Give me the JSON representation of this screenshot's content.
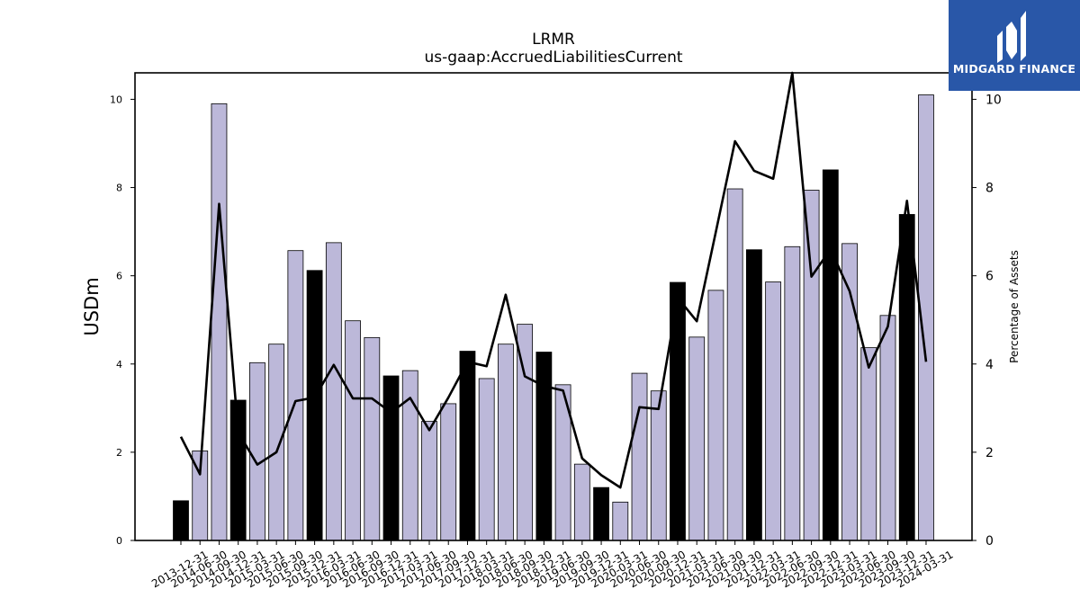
{
  "brand": {
    "name": "MIDGARD FINANCE",
    "bg_color": "#2957a8",
    "icon": "midgard-logo-icon"
  },
  "colors": {
    "bar_default": "#bcb8d9",
    "bar_highlight": "#000000",
    "line": "#000000"
  },
  "chart_data": {
    "type": "bar",
    "title": "LRMR",
    "subtitle": "us-gaap:AccruedLiabilitiesCurrent",
    "ylabel": "USDm",
    "y2label": "Percentage of Assets",
    "ylim": [
      0,
      10.6
    ],
    "y2lim": [
      0,
      10.6
    ],
    "yticks": [
      0,
      2,
      4,
      6,
      8,
      10
    ],
    "y2ticks": [
      0,
      2,
      4,
      6,
      8,
      10
    ],
    "categories": [
      "2013-12-31",
      "2014-06-30",
      "2014-09-30",
      "2014-12-31",
      "2015-03-31",
      "2015-06-30",
      "2015-09-30",
      "2015-12-31",
      "2016-03-31",
      "2016-06-30",
      "2016-09-30",
      "2016-12-31",
      "2017-03-31",
      "2017-06-30",
      "2017-09-30",
      "2017-12-31",
      "2018-03-31",
      "2018-06-30",
      "2018-09-30",
      "2018-12-31",
      "2019-06-30",
      "2019-09-30",
      "2019-12-31",
      "2020-03-31",
      "2020-06-30",
      "2020-09-30",
      "2020-12-31",
      "2021-03-31",
      "2021-06-30",
      "2021-09-30",
      "2021-12-31",
      "2022-03-31",
      "2022-06-30",
      "2022-09-30",
      "2022-12-31",
      "2023-03-31",
      "2023-06-30",
      "2023-09-30",
      "2023-12-31",
      "2024-03-31"
    ],
    "series": [
      {
        "type": "bar",
        "axis": "left",
        "values": [
          0.9,
          2.03,
          9.9,
          3.18,
          4.03,
          4.45,
          6.57,
          6.12,
          6.75,
          4.98,
          4.6,
          3.73,
          3.85,
          2.7,
          3.1,
          4.29,
          3.67,
          4.45,
          4.9,
          4.27,
          3.53,
          1.73,
          1.2,
          0.87,
          3.79,
          3.39,
          5.85,
          4.61,
          5.67,
          7.97,
          6.59,
          5.86,
          6.66,
          7.94,
          8.4,
          6.73,
          4.37,
          5.1,
          7.39,
          10.1
        ],
        "highlight": [
          true,
          false,
          false,
          true,
          false,
          false,
          false,
          true,
          false,
          false,
          false,
          true,
          false,
          false,
          false,
          true,
          false,
          false,
          false,
          true,
          false,
          false,
          true,
          false,
          false,
          false,
          true,
          false,
          false,
          false,
          true,
          false,
          false,
          false,
          true,
          false,
          false,
          false,
          true,
          false
        ]
      },
      {
        "type": "line",
        "axis": "right",
        "values": [
          2.35,
          1.5,
          7.63,
          2.45,
          1.72,
          2.0,
          3.16,
          3.24,
          3.98,
          3.22,
          3.22,
          2.9,
          3.23,
          2.5,
          3.24,
          4.05,
          3.95,
          5.57,
          3.72,
          3.5,
          3.4,
          1.86,
          1.48,
          1.2,
          3.02,
          2.98,
          5.5,
          4.97,
          7.0,
          9.05,
          8.38,
          8.2,
          10.6,
          5.98,
          6.6,
          5.65,
          3.92,
          4.85,
          7.7,
          4.05
        ]
      }
    ]
  }
}
